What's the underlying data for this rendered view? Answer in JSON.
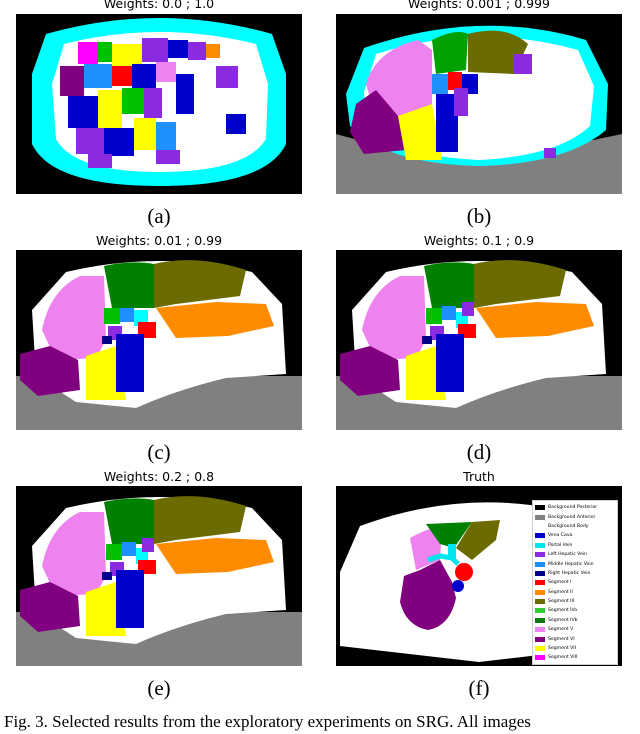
{
  "panels": [
    {
      "title": "Weights: 0.0 ; 1.0",
      "label": "(a)"
    },
    {
      "title": "Weights: 0.001 ; 0.999",
      "label": "(b)"
    },
    {
      "title": "Weights: 0.01 ; 0.99",
      "label": "(c)"
    },
    {
      "title": "Weights: 0.1 ; 0.9",
      "label": "(d)"
    },
    {
      "title": "Weights: 0.2 ; 0.8",
      "label": "(e)"
    },
    {
      "title": "Truth",
      "label": "(f)"
    }
  ],
  "legend": [
    {
      "label": "Background Posterior",
      "color": "#000000"
    },
    {
      "label": "Background Anterior",
      "color": "#808080"
    },
    {
      "label": "Background Body",
      "color": "#ffffff"
    },
    {
      "label": "Vena Cava",
      "color": "#0000cd"
    },
    {
      "label": "Portal Vein",
      "color": "#00e5ee"
    },
    {
      "label": "Left Hepatic Vein",
      "color": "#8a2be2"
    },
    {
      "label": "Middle Hepatic Vein",
      "color": "#1e90ff"
    },
    {
      "label": "Right Hepatic Vein",
      "color": "#00008b"
    },
    {
      "label": "Segment I",
      "color": "#ff0000"
    },
    {
      "label": "Segment II",
      "color": "#ff8c00"
    },
    {
      "label": "Segment III",
      "color": "#6b6b00"
    },
    {
      "label": "Segment IVa",
      "color": "#32cd32"
    },
    {
      "label": "Segment IVb",
      "color": "#0b7a0b"
    },
    {
      "label": "Segment V",
      "color": "#ee82ee"
    },
    {
      "label": "Segment VI",
      "color": "#800080"
    },
    {
      "label": "Segment VII",
      "color": "#ffff00"
    },
    {
      "label": "Segment VIII",
      "color": "#ff00ff"
    }
  ],
  "caption": "Fig. 3.  Selected results from the exploratory experiments on SRG. All images"
}
